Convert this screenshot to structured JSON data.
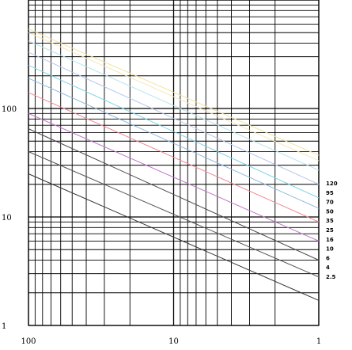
{
  "chart_data": {
    "type": "line",
    "title": "",
    "xlabel": "",
    "ylabel": "",
    "x_scale": "log",
    "y_scale": "log",
    "x_axis_reversed": true,
    "xlim": [
      100,
      1
    ],
    "ylim": [
      1,
      1000
    ],
    "grid": true,
    "x_tick_labels": [
      "100",
      "10",
      "1"
    ],
    "y_tick_labels": [
      "100",
      "10",
      "1"
    ],
    "legend_placement": "right",
    "legend_entries": [
      "120",
      "95",
      "70",
      "50",
      "35",
      "25",
      "16",
      "10",
      "6",
      "4",
      "2.5"
    ],
    "series": [
      {
        "name": "120",
        "color": "#f4e4a0",
        "x": [
          100,
          1
        ],
        "y": [
          540,
          37
        ]
      },
      {
        "name": "95",
        "color": "#f3e9c0",
        "x": [
          100,
          1
        ],
        "y": [
          500,
          33
        ]
      },
      {
        "name": "70",
        "color": "#b8e6ea",
        "x": [
          100,
          1
        ],
        "y": [
          420,
          27
        ]
      },
      {
        "name": "50",
        "color": "#b7c6ee",
        "x": [
          100,
          1
        ],
        "y": [
          330,
          20
        ]
      },
      {
        "name": "35",
        "color": "#7fd4e6",
        "x": [
          100,
          1
        ],
        "y": [
          250,
          15
        ]
      },
      {
        "name": "25",
        "color": "#8db8de",
        "x": [
          100,
          1
        ],
        "y": [
          190,
          12
        ]
      },
      {
        "name": "16",
        "color": "#f08a96",
        "x": [
          100,
          1
        ],
        "y": [
          140,
          9
        ]
      },
      {
        "name": "10",
        "color": "#c07ac8",
        "x": [
          100,
          1
        ],
        "y": [
          90,
          6
        ]
      },
      {
        "name": "6",
        "color": "#4a4a4a",
        "x": [
          100,
          1
        ],
        "y": [
          65,
          4
        ]
      },
      {
        "name": "4",
        "color": "#555555",
        "x": [
          100,
          1
        ],
        "y": [
          40,
          2.8
        ]
      },
      {
        "name": "2.5",
        "color": "#333333",
        "x": [
          100,
          1
        ],
        "y": [
          25,
          1.7
        ]
      }
    ]
  }
}
